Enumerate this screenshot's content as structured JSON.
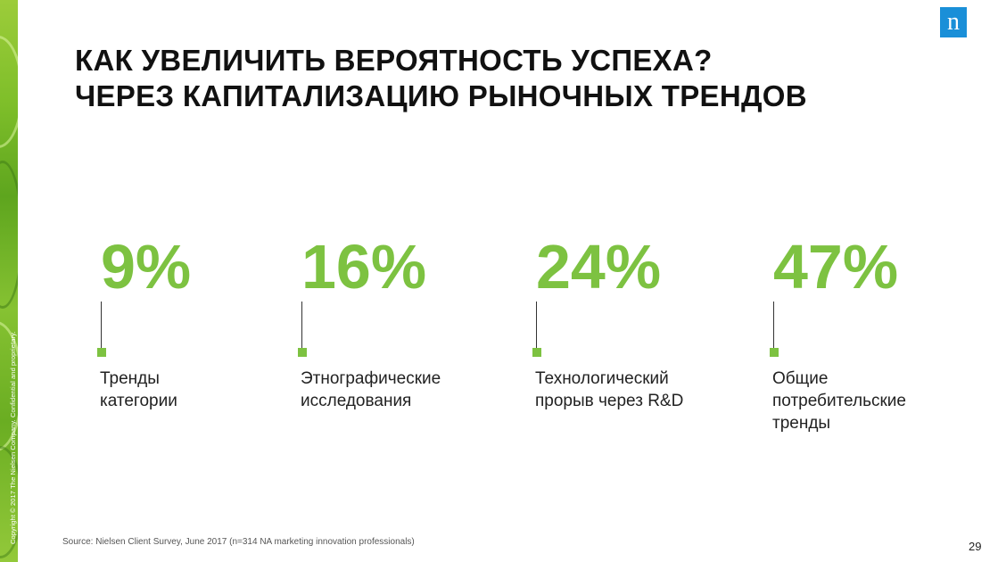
{
  "slide": {
    "title_line1": "КАК УВЕЛИЧИТЬ ВЕРОЯТНОСТЬ УСПЕХА?",
    "title_line2": "ЧЕРЕЗ КАПИТАЛИЗАЦИЮ РЫНОЧНЫХ ТРЕНДОВ",
    "logo_letter": "n",
    "copyright": "Copyright © 2017 The Nielsen Company. Confidential and proprietary.",
    "source": "Source: Nielsen Client Survey, June 2017 (n=314 NA marketing innovation professionals)",
    "page_number": "29"
  },
  "stats": [
    {
      "value": "9%",
      "label": "Тренды категории"
    },
    {
      "value": "16%",
      "label": "Этнографические исследования"
    },
    {
      "value": "24%",
      "label": "Технологический прорыв через R&D"
    },
    {
      "value": "47%",
      "label": "Общие потребительские тренды"
    }
  ],
  "colors": {
    "accent_green": "#7dc241",
    "logo_blue": "#1a8fd8",
    "title_text": "#111111"
  },
  "icons": {
    "logo": "nielsen-logo"
  }
}
